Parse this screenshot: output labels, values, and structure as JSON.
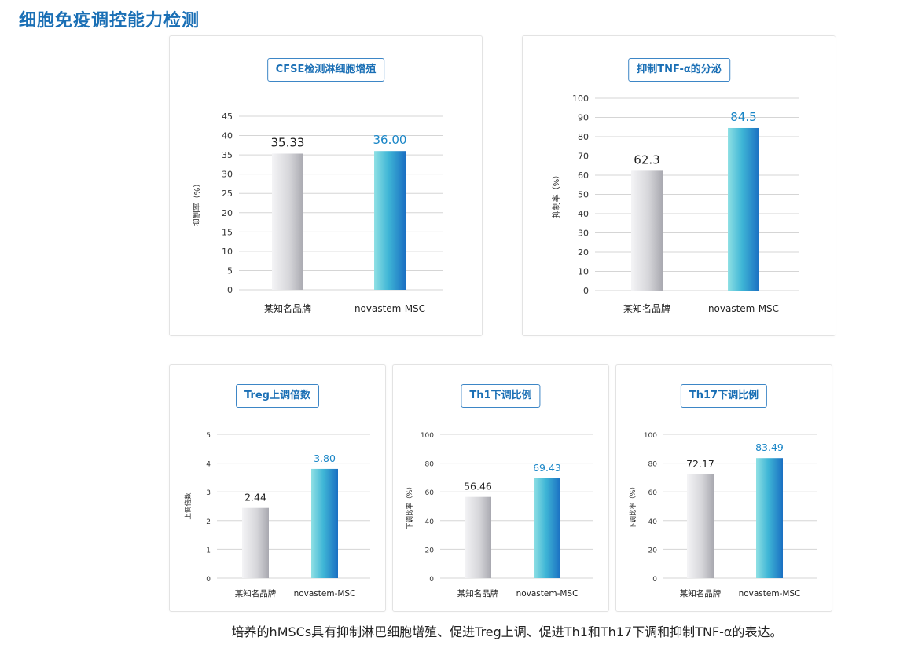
{
  "page_title": "细胞免疫调控能力检测",
  "caption": "培养的hMSCs具有抑制淋巴细胞增殖、促进Treg上调、促进Th1和Th17下调和抑制TNF-α的表达。",
  "colors": {
    "title": "#1a6fb5",
    "brand_value": "#1a86c7",
    "other_value": "#222222",
    "gray_bar": "#c8c8cc",
    "blue_bar": "#2a86c8"
  },
  "chart_data": [
    {
      "type": "bar",
      "title": "CFSE检测淋细胞增殖",
      "ylabel": "抑制率（%）",
      "categories": [
        "某知名品牌",
        "novastem-MSC"
      ],
      "values": [
        35.33,
        36.0
      ],
      "value_labels": [
        "35.33",
        "36.00"
      ],
      "ylim": [
        0,
        45
      ],
      "yticks": [
        0,
        5,
        10,
        15,
        20,
        25,
        30,
        35,
        40,
        45
      ]
    },
    {
      "type": "bar",
      "title": "抑制TNF-α的分泌",
      "ylabel": "抑制率（%）",
      "categories": [
        "某知名品牌",
        "novastem-MSC"
      ],
      "values": [
        62.3,
        84.5
      ],
      "value_labels": [
        "62.3",
        "84.5"
      ],
      "ylim": [
        0,
        100
      ],
      "yticks": [
        0,
        10,
        20,
        30,
        40,
        50,
        60,
        70,
        80,
        90,
        100
      ]
    },
    {
      "type": "bar",
      "title": "Treg上调倍数",
      "ylabel": "上调倍数",
      "categories": [
        "某知名品牌",
        "novastem-MSC"
      ],
      "values": [
        2.44,
        3.8
      ],
      "value_labels": [
        "2.44",
        "3.80"
      ],
      "ylim": [
        0,
        5
      ],
      "yticks": [
        0,
        1,
        2,
        3,
        4,
        5
      ]
    },
    {
      "type": "bar",
      "title": "Th1下调比例",
      "ylabel": "下调比率（%）",
      "categories": [
        "某知名品牌",
        "novastem-MSC"
      ],
      "values": [
        56.46,
        69.43
      ],
      "value_labels": [
        "56.46",
        "69.43"
      ],
      "ylim": [
        0,
        100
      ],
      "yticks": [
        0,
        20,
        40,
        60,
        80,
        100
      ]
    },
    {
      "type": "bar",
      "title": "Th17下调比例",
      "ylabel": "下调比率（%）",
      "categories": [
        "某知名品牌",
        "novastem-MSC"
      ],
      "values": [
        72.17,
        83.49
      ],
      "value_labels": [
        "72.17",
        "83.49"
      ],
      "ylim": [
        0,
        100
      ],
      "yticks": [
        0,
        20,
        40,
        60,
        80,
        100
      ]
    }
  ]
}
